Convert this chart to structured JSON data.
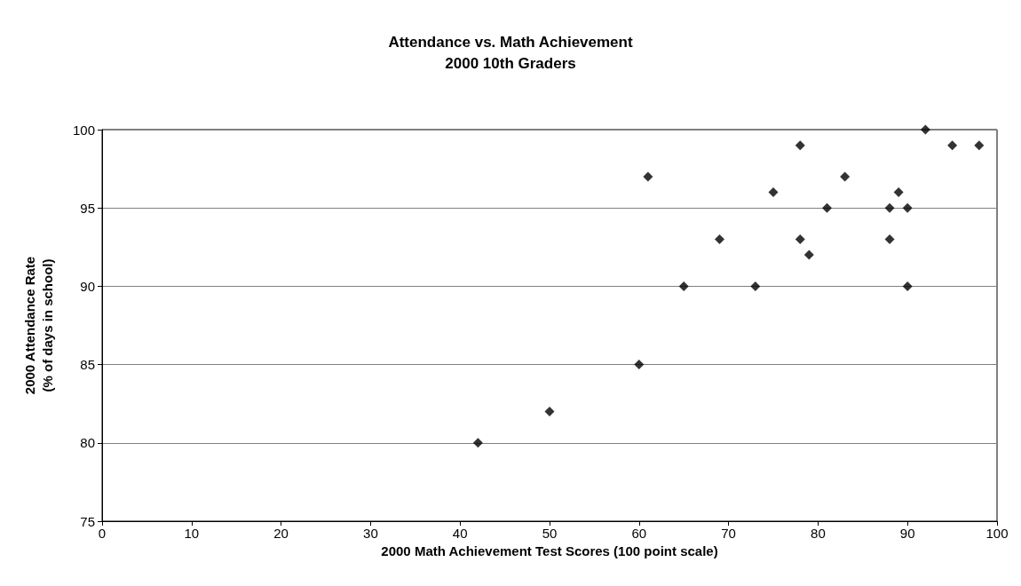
{
  "chart_data": {
    "type": "scatter",
    "title": "Attendance vs. Math Achievement\n2000 10th Graders",
    "xlabel": "2000 Math Achievement Test Scores (100 point scale)",
    "ylabel": "2000 Attendance Rate\n(% of days in school)",
    "x": [
      42,
      50,
      60,
      61,
      65,
      69,
      73,
      75,
      78,
      78,
      79,
      81,
      83,
      88,
      88,
      89,
      90,
      90,
      92,
      95,
      98
    ],
    "series": [
      {
        "color": "#000000",
        "values": [
          80,
          82,
          85,
          97,
          90,
          93,
          90,
          96,
          99,
          93,
          92,
          95,
          97,
          95,
          93,
          96,
          95,
          90,
          100,
          99,
          99
        ]
      }
    ],
    "xlim": [
      0,
      100
    ],
    "xticks": [
      0,
      10,
      20,
      30,
      40,
      50,
      60,
      70,
      80,
      90,
      100
    ],
    "ylim": [
      75,
      100
    ],
    "yticks": [
      75,
      80,
      85,
      90,
      95,
      100
    ],
    "grid": "y",
    "marker": "diamond"
  }
}
